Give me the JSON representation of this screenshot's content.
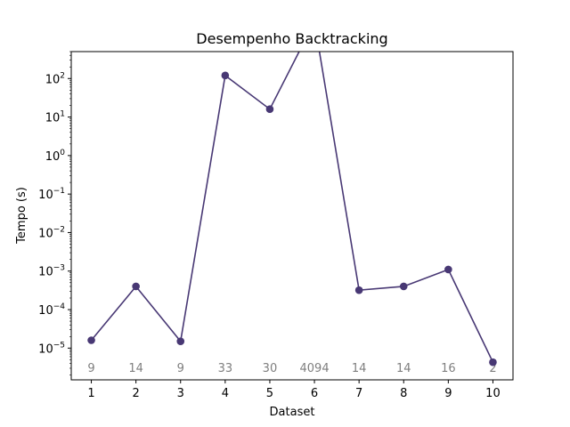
{
  "chart_data": {
    "type": "line",
    "title": "Desempenho Backtracking",
    "xlabel": "Dataset",
    "ylabel": "Tempo (s)",
    "yscale": "log",
    "ylim": [
      1.5e-06,
      500
    ],
    "xlim": [
      0.55,
      10.45
    ],
    "grid": false,
    "x": [
      1,
      2,
      3,
      4,
      5,
      6,
      7,
      8,
      9,
      10
    ],
    "x_tick_labels": [
      "1",
      "2",
      "3",
      "4",
      "5",
      "6",
      "7",
      "8",
      "9",
      "10"
    ],
    "y_ticks": [
      {
        "value": 1e-05,
        "base": "10",
        "exp": "−5"
      },
      {
        "value": 0.0001,
        "base": "10",
        "exp": "−4"
      },
      {
        "value": 0.001,
        "base": "10",
        "exp": "−3"
      },
      {
        "value": 0.01,
        "base": "10",
        "exp": "−2"
      },
      {
        "value": 0.1,
        "base": "10",
        "exp": "−1"
      },
      {
        "value": 1,
        "base": "10",
        "exp": "0"
      },
      {
        "value": 10,
        "base": "10",
        "exp": "1"
      },
      {
        "value": 100,
        "base": "10",
        "exp": "2"
      }
    ],
    "series": [
      {
        "color": "#483874",
        "values": [
          1.6e-05,
          0.0004,
          1.5e-05,
          120,
          16,
          3000,
          0.00032,
          0.0004,
          0.0011,
          4.3e-06
        ]
      }
    ],
    "annotations": [
      "9",
      "14",
      "9",
      "33",
      "30",
      "4094",
      "14",
      "14",
      "16",
      "2"
    ],
    "annotation_color": "#7f7f7f"
  }
}
